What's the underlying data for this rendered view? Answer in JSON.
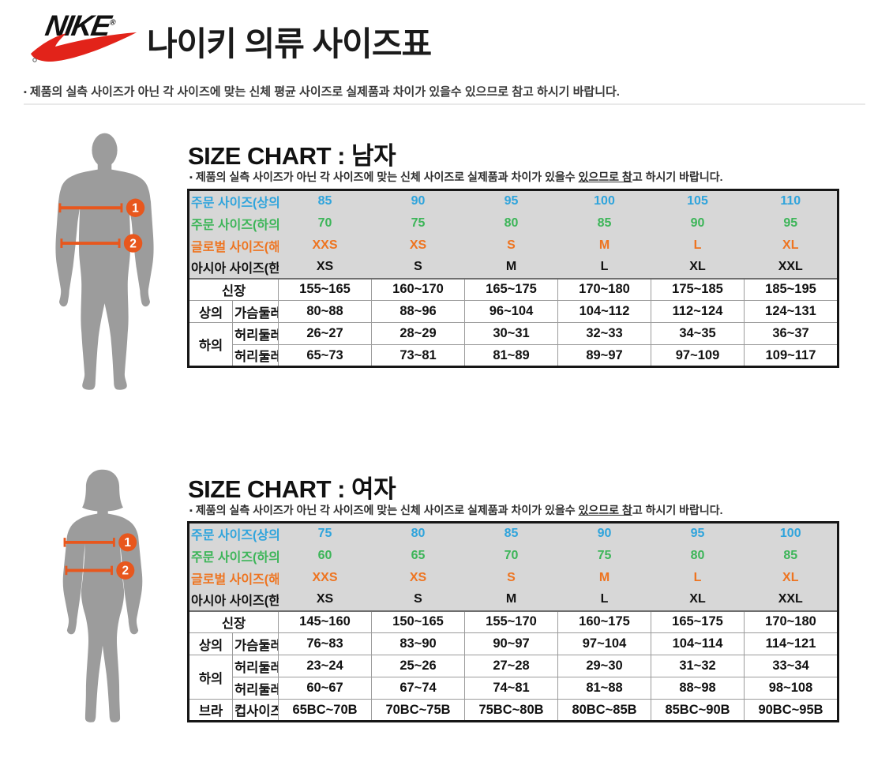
{
  "brand": {
    "wordmark": "NIKE",
    "registered": "®"
  },
  "page_title": "나이키 의류 사이즈표",
  "top_note": {
    "bullet": "▪",
    "text": "제품의 실측 사이즈가 아닌 각 사이즈에 맞는 신체 평균 사이즈로 실제품과 차이가 있을수 있으므로 참고 하시기 바랍니다."
  },
  "colors": {
    "swoosh_red": "#e2231a",
    "order_top_blue": "#2fa4dc",
    "order_bottom_green": "#3cb558",
    "global_orange": "#ee7420",
    "asia_black": "#111111",
    "table_header_bg": "#d7d7d7",
    "silhouette_gray": "#9c9c9c",
    "measure_orange": "#e8571d"
  },
  "sections": [
    {
      "id": "men",
      "title": "SIZE CHART : 남자",
      "note": {
        "bullet": "▪",
        "before": "제품의 실측 사이즈가 아닌 각 사이즈에 맞는 신체 사이즈로 실제품과 차이가 있을수 ",
        "underline": "있으므로 참",
        "after": "고 하시기 바랍니다."
      },
      "figure": {
        "badges": [
          "1",
          "2"
        ]
      },
      "table": {
        "order_rows": [
          {
            "label": "주문 사이즈(상의)",
            "color": "blue",
            "values": [
              "85",
              "90",
              "95",
              "100",
              "105",
              "110"
            ]
          },
          {
            "label": "주문 사이즈(하의)",
            "color": "green",
            "values": [
              "70",
              "75",
              "80",
              "85",
              "90",
              "95"
            ]
          },
          {
            "label": "글로벌 사이즈(해외)",
            "color": "orange",
            "values": [
              "XXS",
              "XS",
              "S",
              "M",
              "L",
              "XL"
            ]
          },
          {
            "label": "아시아 사이즈(한국)",
            "color": "black",
            "values": [
              "XS",
              "S",
              "M",
              "L",
              "XL",
              "XXL"
            ]
          }
        ],
        "body_rows": [
          {
            "label": "신장",
            "label_colspan": 2,
            "values": [
              "155~165",
              "160~170",
              "165~175",
              "170~180",
              "175~185",
              "185~195"
            ]
          },
          {
            "group": "상의",
            "group_rowspan": 1,
            "label": "가슴둘레",
            "values": [
              "80~88",
              "88~96",
              "96~104",
              "104~112",
              "112~124",
              "124~131"
            ]
          },
          {
            "group": "하의",
            "group_rowspan": 2,
            "label": "허리둘레",
            "values": [
              "26~27",
              "28~29",
              "30~31",
              "32~33",
              "34~35",
              "36~37"
            ]
          },
          {
            "label": "허리둘레",
            "values": [
              "65~73",
              "73~81",
              "81~89",
              "89~97",
              "97~109",
              "109~117"
            ]
          }
        ]
      }
    },
    {
      "id": "women",
      "title": "SIZE CHART : 여자",
      "note": {
        "bullet": "▪",
        "before": "제품의 실측 사이즈가 아닌 각 사이즈에 맞는 신체 사이즈로 실제품과 차이가 있을수 ",
        "underline": "있으므로 참",
        "after": "고 하시기 바랍니다."
      },
      "figure": {
        "badges": [
          "1",
          "2"
        ]
      },
      "table": {
        "order_rows": [
          {
            "label": "주문 사이즈(상의)",
            "color": "blue",
            "values": [
              "75",
              "80",
              "85",
              "90",
              "95",
              "100"
            ]
          },
          {
            "label": "주문 사이즈(하의)",
            "color": "green",
            "values": [
              "60",
              "65",
              "70",
              "75",
              "80",
              "85"
            ]
          },
          {
            "label": "글로벌 사이즈(해외)",
            "color": "orange",
            "values": [
              "XXS",
              "XS",
              "S",
              "M",
              "L",
              "XL"
            ]
          },
          {
            "label": "아시아 사이즈(한국)",
            "color": "black",
            "values": [
              "XS",
              "S",
              "M",
              "L",
              "XL",
              "XXL"
            ]
          }
        ],
        "body_rows": [
          {
            "label": "신장",
            "label_colspan": 2,
            "values": [
              "145~160",
              "150~165",
              "155~170",
              "160~175",
              "165~175",
              "170~180"
            ]
          },
          {
            "group": "상의",
            "group_rowspan": 1,
            "label": "가슴둘레",
            "values": [
              "76~83",
              "83~90",
              "90~97",
              "97~104",
              "104~114",
              "114~121"
            ]
          },
          {
            "group": "하의",
            "group_rowspan": 2,
            "label": "허리둘레",
            "values": [
              "23~24",
              "25~26",
              "27~28",
              "29~30",
              "31~32",
              "33~34"
            ]
          },
          {
            "label": "허리둘레",
            "values": [
              "60~67",
              "67~74",
              "74~81",
              "81~88",
              "88~98",
              "98~108"
            ]
          },
          {
            "group": "브라",
            "group_rowspan": 1,
            "label": "컵사이즈",
            "values": [
              "65BC~70B",
              "70BC~75B",
              "75BC~80B",
              "80BC~85B",
              "85BC~90B",
              "90BC~95B"
            ]
          }
        ]
      }
    }
  ]
}
